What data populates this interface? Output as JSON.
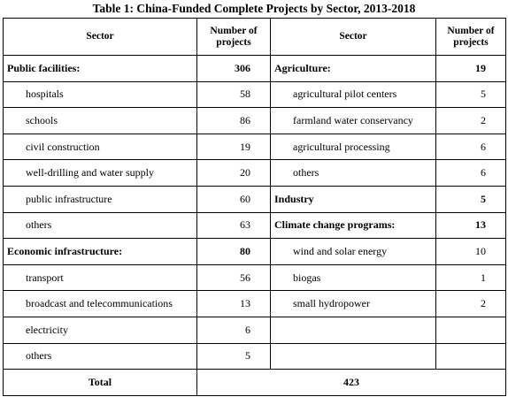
{
  "title": "Table 1: China-Funded Complete Projects by Sector, 2013-2018",
  "table": {
    "header": [
      "Sector",
      "Number of projects",
      "Sector",
      "Number of projects"
    ],
    "left": [
      {
        "name": "Public facilities:",
        "count": 306,
        "items": [
          {
            "name": "hospitals",
            "count": 58
          },
          {
            "name": "schools",
            "count": 86
          },
          {
            "name": "civil construction",
            "count": 19
          },
          {
            "name": "well-drilling and water supply",
            "count": 20
          },
          {
            "name": "public infrastructure",
            "count": 60
          },
          {
            "name": "others",
            "count": 63
          }
        ]
      },
      {
        "name": "Economic infrastructure:",
        "count": 80,
        "items": [
          {
            "name": "transport",
            "count": 56
          },
          {
            "name": "broadcast and telecommunications",
            "count": 13
          },
          {
            "name": "electricity",
            "count": 6
          },
          {
            "name": "others",
            "count": 5
          }
        ]
      }
    ],
    "right": [
      {
        "name": "Agriculture:",
        "count": 19,
        "items": [
          {
            "name": "agricultural pilot centers",
            "count": 5
          },
          {
            "name": "farmland water conservancy",
            "count": 2
          },
          {
            "name": "agricultural processing",
            "count": 6
          },
          {
            "name": "others",
            "count": 6
          }
        ]
      },
      {
        "name": "Industry",
        "count": 5,
        "items": []
      },
      {
        "name": "Climate change programs:",
        "count": 13,
        "items": [
          {
            "name": "wind and solar energy",
            "count": 10
          },
          {
            "name": "biogas",
            "count": 1
          },
          {
            "name": "small hydropower",
            "count": 2
          }
        ]
      }
    ],
    "total": {
      "label": "Total",
      "value": 423
    }
  }
}
